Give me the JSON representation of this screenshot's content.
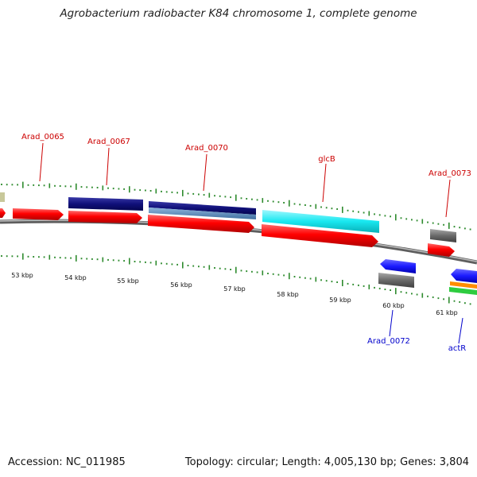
{
  "title": "Agrobacterium radiobacter K84 chromosome 1, complete genome",
  "footer": {
    "accession": "Accession: NC_011985",
    "summary": "Topology: circular; Length: 4,005,130 bp; Genes: 3,804"
  },
  "colors": {
    "backbone": "#8a8a8a",
    "tick": "#2e8b2e",
    "red_feature": "#ff0000",
    "navy_feature": "#10107a",
    "cyan_feature": "#18e8f0",
    "blue_feature": "#1a1aff",
    "gray_feature": "#6a6a6a",
    "label_top": "#cc0000",
    "label_bottom": "#0000cc"
  },
  "scale_labels": [
    "53 kbp",
    "54 kbp",
    "55 kbp",
    "56 kbp",
    "57 kbp",
    "58 kbp",
    "59 kbp",
    "60 kbp",
    "61 kbp"
  ],
  "gene_labels_top": [
    "Arad_0065",
    "Arad_0067",
    "Arad_0070",
    "glcB",
    "Arad_0073"
  ],
  "gene_labels_bottom": [
    "Arad_0072",
    "actR"
  ]
}
